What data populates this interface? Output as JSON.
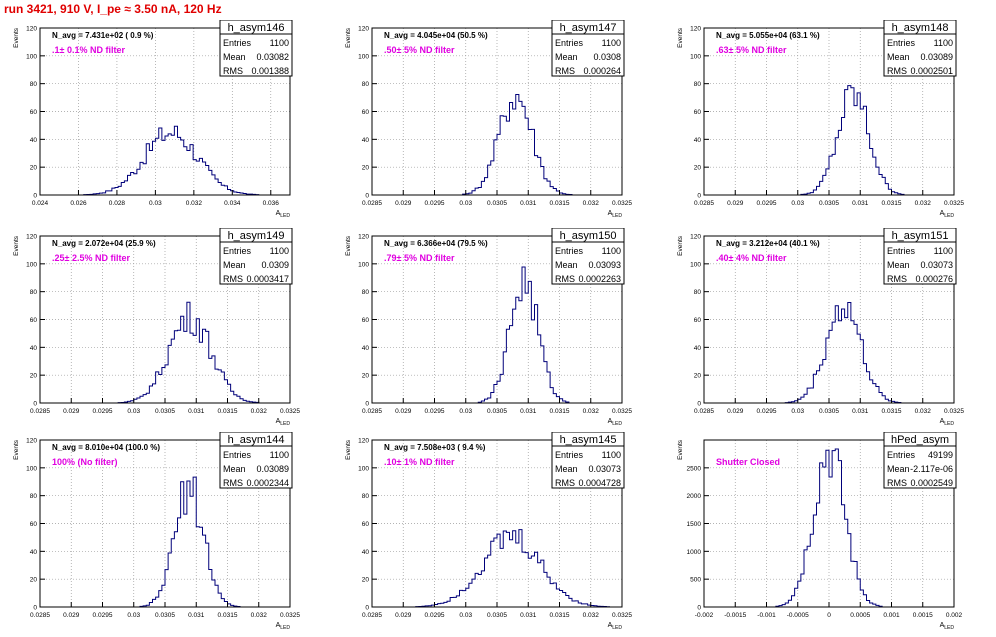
{
  "title": "run 3421,   910 V, I_pe ≈ 3.50 nA, 120 Hz",
  "stats_labels": {
    "entries": "Entries",
    "mean": "Mean",
    "rms": "RMS"
  },
  "colors": {
    "title": "#e00000",
    "annotation": "#e000e0",
    "line": "#00007a",
    "grid": "#9a9a9a"
  },
  "chart_data": [
    {
      "type": "bar",
      "hist": "h_asym146",
      "navg": "N_avg = 7.431e+02 ( 0.9 %)",
      "filter": ".1± 0.1% ND filter",
      "entries": "1100",
      "mean": "0.03082",
      "rms": "0.001388",
      "ylabel": "Events",
      "xlabel": "A_LED",
      "xlim": [
        0.024,
        0.037
      ],
      "ylim": [
        0,
        120
      ],
      "xticks": [
        0.024,
        0.026,
        0.028,
        0.03,
        0.032,
        0.034,
        0.036
      ],
      "xticklabels": [
        "0.024",
        "0.026",
        "0.028",
        "0.03",
        "0.032",
        "0.034",
        "0.036"
      ],
      "yticks": [
        0,
        20,
        40,
        60,
        80,
        100,
        120
      ],
      "peak": 45,
      "mu": 0.03082,
      "sigma": 0.00139
    },
    {
      "type": "bar",
      "hist": "h_asym147",
      "navg": "N_avg = 4.045e+04 (50.5 %)",
      "filter": ".50± 5% ND filter",
      "entries": "1100",
      "mean": "0.0308",
      "rms": "0.000264",
      "ylabel": "Events",
      "xlabel": "A_LED",
      "xlim": [
        0.0285,
        0.0325
      ],
      "ylim": [
        0,
        120
      ],
      "xticks": [
        0.0285,
        0.029,
        0.0295,
        0.03,
        0.0305,
        0.031,
        0.0315,
        0.032,
        0.0325
      ],
      "xticklabels": [
        "0.0285",
        "0.029",
        "0.0295",
        "0.03",
        "0.0305",
        "0.031",
        "0.0315",
        "0.032",
        "0.0325"
      ],
      "yticks": [
        0,
        20,
        40,
        60,
        80,
        100,
        120
      ],
      "peak": 72,
      "mu": 0.0308,
      "sigma": 0.000264
    },
    {
      "type": "bar",
      "hist": "h_asym148",
      "navg": "N_avg = 5.055e+04 (63.1 %)",
      "filter": ".63± 5% ND filter",
      "entries": "1100",
      "mean": "0.03089",
      "rms": "0.0002501",
      "ylabel": "Events",
      "xlabel": "A_LED",
      "xlim": [
        0.0285,
        0.0325
      ],
      "ylim": [
        0,
        120
      ],
      "xticks": [
        0.0285,
        0.029,
        0.0295,
        0.03,
        0.0305,
        0.031,
        0.0315,
        0.032,
        0.0325
      ],
      "xticklabels": [
        "0.0285",
        "0.029",
        "0.0295",
        "0.03",
        "0.0305",
        "0.031",
        "0.0315",
        "0.032",
        "0.0325"
      ],
      "yticks": [
        0,
        20,
        40,
        60,
        80,
        100,
        120
      ],
      "peak": 72,
      "mu": 0.03089,
      "sigma": 0.00025
    },
    {
      "type": "bar",
      "hist": "h_asym149",
      "navg": "N_avg = 2.072e+04 (25.9 %)",
      "filter": ".25± 2.5% ND filter",
      "entries": "1100",
      "mean": "0.0309",
      "rms": "0.0003417",
      "ylabel": "Events",
      "xlabel": "A_LED",
      "xlim": [
        0.0285,
        0.0325
      ],
      "ylim": [
        0,
        120
      ],
      "xticks": [
        0.0285,
        0.029,
        0.0295,
        0.03,
        0.0305,
        0.031,
        0.0315,
        0.032,
        0.0325
      ],
      "xticklabels": [
        "0.0285",
        "0.029",
        "0.0295",
        "0.03",
        "0.0305",
        "0.031",
        "0.0315",
        "0.032",
        "0.0325"
      ],
      "yticks": [
        0,
        20,
        40,
        60,
        80,
        100,
        120
      ],
      "peak": 62,
      "mu": 0.0309,
      "sigma": 0.00034
    },
    {
      "type": "bar",
      "hist": "h_asym150",
      "navg": "N_avg = 6.366e+04 (79.5 %)",
      "filter": ".79± 5% ND filter",
      "entries": "1100",
      "mean": "0.03093",
      "rms": "0.0002263",
      "ylabel": "Events",
      "xlabel": "A_LED",
      "xlim": [
        0.0285,
        0.0325
      ],
      "ylim": [
        0,
        120
      ],
      "xticks": [
        0.0285,
        0.029,
        0.0295,
        0.03,
        0.0305,
        0.031,
        0.0315,
        0.032,
        0.0325
      ],
      "xticklabels": [
        "0.0285",
        "0.029",
        "0.0295",
        "0.03",
        "0.0305",
        "0.031",
        "0.0315",
        "0.032",
        "0.0325"
      ],
      "yticks": [
        0,
        20,
        40,
        60,
        80,
        100,
        120
      ],
      "peak": 87,
      "mu": 0.03093,
      "sigma": 0.000226
    },
    {
      "type": "bar",
      "hist": "h_asym151",
      "navg": "N_avg = 3.212e+04 (40.1 %)",
      "filter": ".40± 4% ND filter",
      "entries": "1100",
      "mean": "0.03073",
      "rms": "0.000276",
      "ylabel": "Events",
      "xlabel": "A_LED",
      "xlim": [
        0.0285,
        0.0325
      ],
      "ylim": [
        0,
        120
      ],
      "xticks": [
        0.0285,
        0.029,
        0.0295,
        0.03,
        0.0305,
        0.031,
        0.0315,
        0.032,
        0.0325
      ],
      "xticklabels": [
        "0.0285",
        "0.029",
        "0.0295",
        "0.03",
        "0.0305",
        "0.031",
        "0.0315",
        "0.032",
        "0.0325"
      ],
      "yticks": [
        0,
        20,
        40,
        60,
        80,
        100,
        120
      ],
      "peak": 70,
      "mu": 0.03073,
      "sigma": 0.000276
    },
    {
      "type": "bar",
      "hist": "h_asym144",
      "navg": "N_avg = 8.010e+04 (100.0 %)",
      "filter": "100% (No filter)",
      "entries": "1100",
      "mean": "0.03089",
      "rms": "0.0002344",
      "ylabel": "Events",
      "xlabel": "A_LED",
      "xlim": [
        0.0285,
        0.0325
      ],
      "ylim": [
        0,
        120
      ],
      "xticks": [
        0.0285,
        0.029,
        0.0295,
        0.03,
        0.0305,
        0.031,
        0.0315,
        0.032,
        0.0325
      ],
      "xticklabels": [
        "0.0285",
        "0.029",
        "0.0295",
        "0.03",
        "0.0305",
        "0.031",
        "0.0315",
        "0.032",
        "0.0325"
      ],
      "yticks": [
        0,
        20,
        40,
        60,
        80,
        100,
        120
      ],
      "peak": 85,
      "mu": 0.03089,
      "sigma": 0.000234
    },
    {
      "type": "bar",
      "hist": "h_asym145",
      "navg": "N_avg = 7.508e+03 ( 9.4 %)",
      "filter": ".10± 1% ND filter",
      "entries": "1100",
      "mean": "0.03073",
      "rms": "0.0004728",
      "ylabel": "Events",
      "xlabel": "A_LED",
      "xlim": [
        0.0285,
        0.0325
      ],
      "ylim": [
        0,
        120
      ],
      "xticks": [
        0.0285,
        0.029,
        0.0295,
        0.03,
        0.0305,
        0.031,
        0.0315,
        0.032,
        0.0325
      ],
      "xticklabels": [
        "0.0285",
        "0.029",
        "0.0295",
        "0.03",
        "0.0305",
        "0.031",
        "0.0315",
        "0.032",
        "0.0325"
      ],
      "yticks": [
        0,
        20,
        40,
        60,
        80,
        100,
        120
      ],
      "peak": 50,
      "mu": 0.03073,
      "sigma": 0.00047
    },
    {
      "type": "bar",
      "hist": "hPed_asym",
      "navg": "",
      "filter": "Shutter Closed",
      "entries": "49199",
      "mean": "-2.117e-06",
      "rms": "0.0002549",
      "ylabel": "Events",
      "xlabel": "A_LED",
      "xlim": [
        -0.002,
        0.002
      ],
      "ylim": [
        0,
        3000
      ],
      "xticks": [
        -0.002,
        -0.0015,
        -0.001,
        -0.0005,
        0,
        0.0005,
        0.001,
        0.0015,
        0.002
      ],
      "xticklabels": [
        "-0.002",
        "-0.0015",
        "-0.001",
        "-0.0005",
        "0",
        "0.0005",
        "0.001",
        "0.0015",
        "0.002"
      ],
      "yticks": [
        0,
        500,
        1000,
        1500,
        2000,
        2500
      ],
      "peak": 2800,
      "mu": 0.0,
      "sigma": 0.000255
    }
  ]
}
